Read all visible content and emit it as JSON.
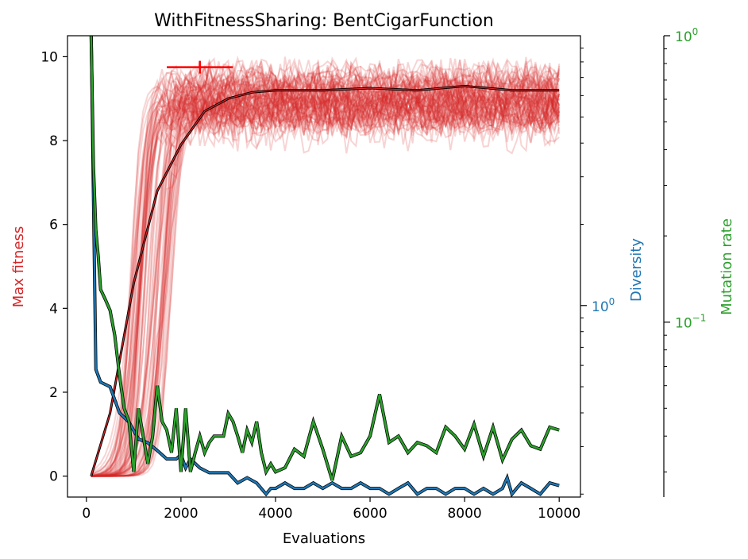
{
  "chart_data": {
    "type": "line",
    "title": "WithFitnessSharing: BentCigarFunction",
    "xlabel": "Evaluations",
    "xlim": [
      -400,
      10450
    ],
    "xticks": [
      "0",
      "2000",
      "4000",
      "6000",
      "8000",
      "10000"
    ],
    "xtick_values": [
      0,
      2000,
      4000,
      6000,
      8000,
      10000
    ],
    "colors": {
      "fitness": "#d62728",
      "diversity": "#1f77b4",
      "mutation": "#2ca02c",
      "errorbar": "#ff0000"
    },
    "axes": {
      "fitness": {
        "label": "Max fitness",
        "scale": "linear",
        "ylim": [
          -0.5,
          10.5
        ],
        "ticks": [
          "0",
          "2",
          "4",
          "6",
          "8",
          "10"
        ],
        "tick_values": [
          0,
          2,
          4,
          6,
          8,
          10
        ]
      },
      "diversity": {
        "label": "Diversity",
        "scale": "log",
        "ylim": [
          0.195,
          10.0
        ],
        "tick_labels": [
          "10^0"
        ],
        "tick_values": [
          1
        ]
      },
      "mutation": {
        "label": "Mutation rate",
        "scale": "log",
        "ylim": [
          0.0245,
          1.0
        ],
        "tick_labels": [
          "10^-1",
          "10^0"
        ],
        "tick_values": [
          0.1,
          1
        ]
      }
    },
    "series": [
      {
        "name": "Max fitness (mean)",
        "axis": "fitness",
        "x": [
          100,
          500,
          1000,
          1500,
          2000,
          2500,
          3000,
          3500,
          4000,
          5000,
          6000,
          7000,
          8000,
          9000,
          10000
        ],
        "values": [
          0,
          1.5,
          4.6,
          6.8,
          7.9,
          8.7,
          9.0,
          9.15,
          9.2,
          9.2,
          9.25,
          9.2,
          9.3,
          9.2,
          9.2
        ]
      },
      {
        "name": "Diversity",
        "axis": "diversity",
        "x": [
          100,
          200,
          300,
          500,
          700,
          900,
          1100,
          1300,
          1500,
          1700,
          1900,
          2000,
          2100,
          2200,
          2400,
          2600,
          2800,
          3000,
          3200,
          3400,
          3600,
          3800,
          3900,
          4000,
          4200,
          4400,
          4600,
          4800,
          5000,
          5200,
          5400,
          5600,
          5800,
          6000,
          6200,
          6400,
          6600,
          6800,
          7000,
          7200,
          7400,
          7600,
          7800,
          8000,
          8200,
          8400,
          8600,
          8800,
          8900,
          9000,
          9100,
          9200,
          9400,
          9600,
          9800,
          10000
        ],
        "values": [
          10.5,
          0.58,
          0.52,
          0.5,
          0.4,
          0.37,
          0.32,
          0.31,
          0.29,
          0.27,
          0.27,
          0.28,
          0.25,
          0.27,
          0.25,
          0.24,
          0.24,
          0.24,
          0.22,
          0.23,
          0.22,
          0.2,
          0.21,
          0.21,
          0.22,
          0.21,
          0.21,
          0.22,
          0.21,
          0.22,
          0.21,
          0.21,
          0.22,
          0.21,
          0.21,
          0.2,
          0.21,
          0.22,
          0.2,
          0.21,
          0.21,
          0.2,
          0.21,
          0.21,
          0.2,
          0.21,
          0.2,
          0.21,
          0.23,
          0.2,
          0.21,
          0.22,
          0.21,
          0.2,
          0.22,
          0.215
        ]
      },
      {
        "name": "Mutation rate",
        "axis": "mutation",
        "x": [
          100,
          150,
          200,
          250,
          300,
          400,
          500,
          600,
          700,
          800,
          900,
          1000,
          1100,
          1200,
          1300,
          1400,
          1500,
          1600,
          1700,
          1800,
          1900,
          2000,
          2100,
          2200,
          2300,
          2400,
          2500,
          2600,
          2700,
          2800,
          2900,
          3000,
          3100,
          3200,
          3300,
          3400,
          3500,
          3600,
          3700,
          3800,
          3900,
          4000,
          4200,
          4400,
          4600,
          4800,
          5000,
          5200,
          5400,
          5600,
          5800,
          6000,
          6200,
          6400,
          6600,
          6800,
          7000,
          7200,
          7400,
          7600,
          7800,
          8000,
          8200,
          8400,
          8600,
          8800,
          9000,
          9200,
          9400,
          9600,
          9800,
          10000
        ],
        "values": [
          1.0,
          0.35,
          0.21,
          0.17,
          0.13,
          0.12,
          0.11,
          0.09,
          0.065,
          0.05,
          0.045,
          0.03,
          0.05,
          0.04,
          0.032,
          0.04,
          0.06,
          0.045,
          0.042,
          0.035,
          0.05,
          0.03,
          0.05,
          0.03,
          0.035,
          0.04,
          0.035,
          0.038,
          0.04,
          0.04,
          0.04,
          0.048,
          0.045,
          0.04,
          0.035,
          0.042,
          0.038,
          0.045,
          0.035,
          0.03,
          0.032,
          0.03,
          0.031,
          0.036,
          0.034,
          0.045,
          0.036,
          0.028,
          0.04,
          0.034,
          0.035,
          0.04,
          0.056,
          0.038,
          0.04,
          0.035,
          0.038,
          0.037,
          0.035,
          0.043,
          0.04,
          0.036,
          0.044,
          0.034,
          0.043,
          0.033,
          0.039,
          0.042,
          0.037,
          0.036,
          0.043,
          0.042
        ]
      }
    ],
    "errorbar": {
      "axis": "fitness",
      "x": 2400,
      "y": 9.75,
      "xmin": 1700,
      "xmax": 3100
    },
    "faint_fitness_runs": "many translucent red individual runs rising from 0 to ~9 and fluctuating between ~7 and ~10"
  }
}
